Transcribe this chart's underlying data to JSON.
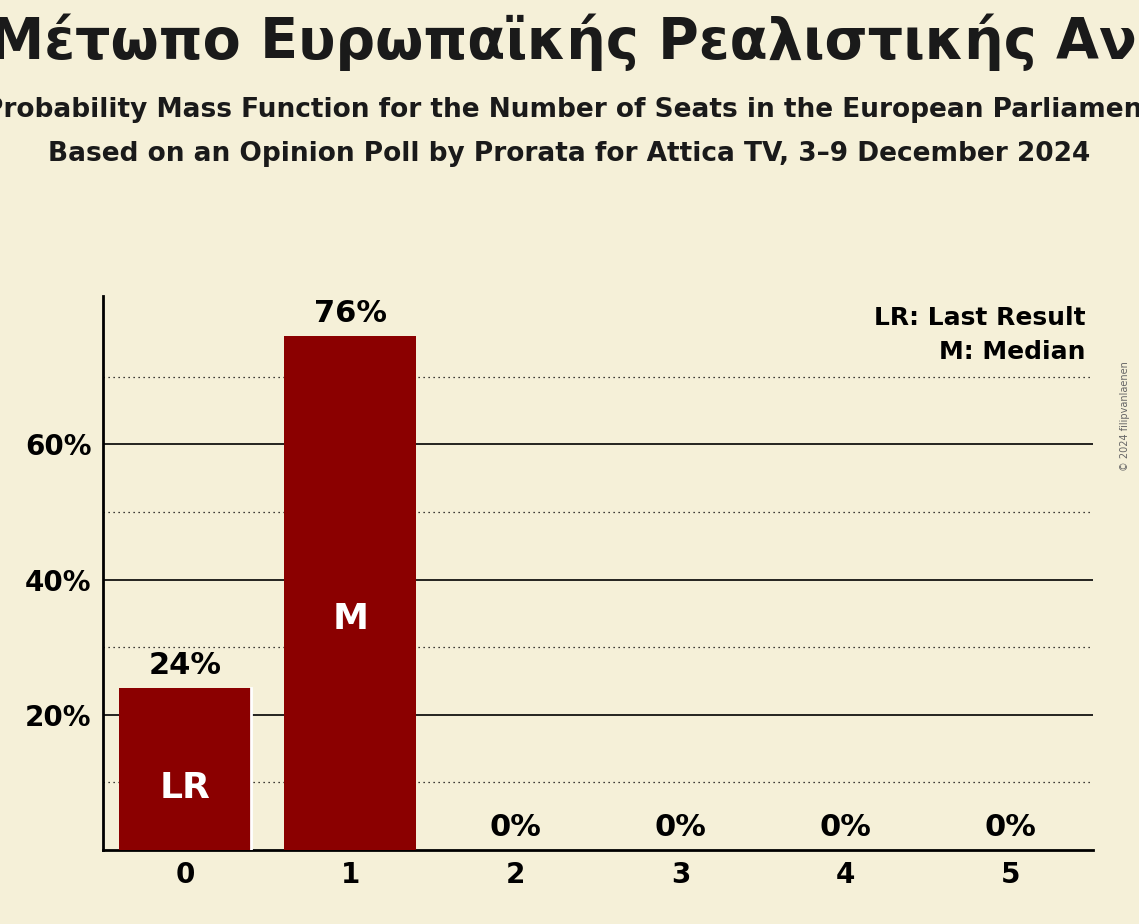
{
  "title_greek": "Μέτωπο Ευρωπαϊκής Ρεαλιστικής Ανυπακοής (GUE/NGL)",
  "subtitle1": "Probability Mass Function for the Number of Seats in the European Parliament",
  "subtitle2": "Based on an Opinion Poll by Prorata for Attica TV, 3–9 December 2024",
  "copyright": "© 2024 filipvanlaenen",
  "x_values": [
    0,
    1,
    2,
    3,
    4,
    5
  ],
  "y_values": [
    0.24,
    0.76,
    0.0,
    0.0,
    0.0,
    0.0
  ],
  "bar_color": "#8b0000",
  "background_color": "#f5f0d8",
  "bar_labels": [
    "24%",
    "76%",
    "0%",
    "0%",
    "0%",
    "0%"
  ],
  "bar_annot_lr_idx": 0,
  "bar_annot_m_idx": 1,
  "legend_lr": "LR: Last Result",
  "legend_m": "M: Median",
  "ylim": [
    0,
    0.82
  ],
  "yticks": [
    0.2,
    0.4,
    0.6
  ],
  "ytick_labels": [
    "20%",
    "40%",
    "60%"
  ],
  "solid_gridlines": [
    0.2,
    0.4,
    0.6
  ],
  "dotted_gridlines": [
    0.1,
    0.3,
    0.5,
    0.7
  ],
  "title_fontsize": 40,
  "subtitle_fontsize": 19,
  "bar_label_fontsize": 22,
  "bar_annot_fontsize": 26,
  "axis_tick_fontsize": 20,
  "legend_fontsize": 18
}
